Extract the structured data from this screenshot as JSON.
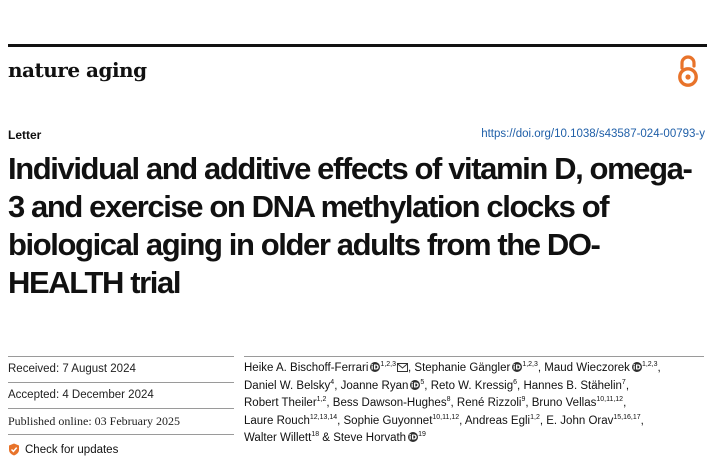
{
  "header": {
    "journal_name": "nature aging",
    "open_access_icon": "open-access-icon",
    "colors": {
      "accent": "#e8732a",
      "link": "#1f5fa8"
    }
  },
  "article": {
    "type": "Letter",
    "doi": "https://doi.org/10.1038/s43587-024-00793-y",
    "title": "Individual and additive effects of vitamin D, omega-3 and exercise on DNA methylation clocks of biological aging in older adults from the DO-HEALTH trial"
  },
  "dates": {
    "received": "Received: 7 August 2024",
    "accepted": "Accepted: 4 December 2024",
    "published": "Published online: 03 February 2025"
  },
  "check_updates": "Check for updates",
  "authors": [
    {
      "name": "Heike A. Bischoff-Ferrari",
      "aff": "1,2,3",
      "orcid": true,
      "corresponding": true,
      "sep": ","
    },
    {
      "name": "Stephanie Gängler",
      "aff": "1,2,3",
      "orcid": true,
      "corresponding": false,
      "sep": ","
    },
    {
      "name": "Maud Wieczorek",
      "aff": "1,2,3",
      "orcid": true,
      "corresponding": false,
      "sep": ","
    },
    {
      "name": "Daniel W. Belsky",
      "aff": "4",
      "orcid": false,
      "corresponding": false,
      "sep": ","
    },
    {
      "name": "Joanne Ryan",
      "aff": "5",
      "orcid": true,
      "corresponding": false,
      "sep": ","
    },
    {
      "name": "Reto W. Kressig",
      "aff": "6",
      "orcid": false,
      "corresponding": false,
      "sep": ","
    },
    {
      "name": "Hannes B. Stähelin",
      "aff": "7",
      "orcid": false,
      "corresponding": false,
      "sep": ","
    },
    {
      "name": "Robert Theiler",
      "aff": "1,2",
      "orcid": false,
      "corresponding": false,
      "sep": ","
    },
    {
      "name": "Bess Dawson-Hughes",
      "aff": "8",
      "orcid": false,
      "corresponding": false,
      "sep": ","
    },
    {
      "name": "René Rizzoli",
      "aff": "9",
      "orcid": false,
      "corresponding": false,
      "sep": ","
    },
    {
      "name": "Bruno Vellas",
      "aff": "10,11,12",
      "orcid": false,
      "corresponding": false,
      "sep": ","
    },
    {
      "name": "Laure Rouch",
      "aff": "12,13,14",
      "orcid": false,
      "corresponding": false,
      "sep": ","
    },
    {
      "name": "Sophie Guyonnet",
      "aff": "10,11,12",
      "orcid": false,
      "corresponding": false,
      "sep": ","
    },
    {
      "name": "Andreas Egli",
      "aff": "1,2",
      "orcid": false,
      "corresponding": false,
      "sep": ","
    },
    {
      "name": "E. John Orav",
      "aff": "15,16,17",
      "orcid": false,
      "corresponding": false,
      "sep": ","
    },
    {
      "name": "Walter Willett",
      "aff": "18",
      "orcid": false,
      "corresponding": false,
      "sep": " &"
    },
    {
      "name": "Steve Horvath",
      "aff": "19",
      "orcid": true,
      "corresponding": false,
      "sep": ""
    }
  ]
}
